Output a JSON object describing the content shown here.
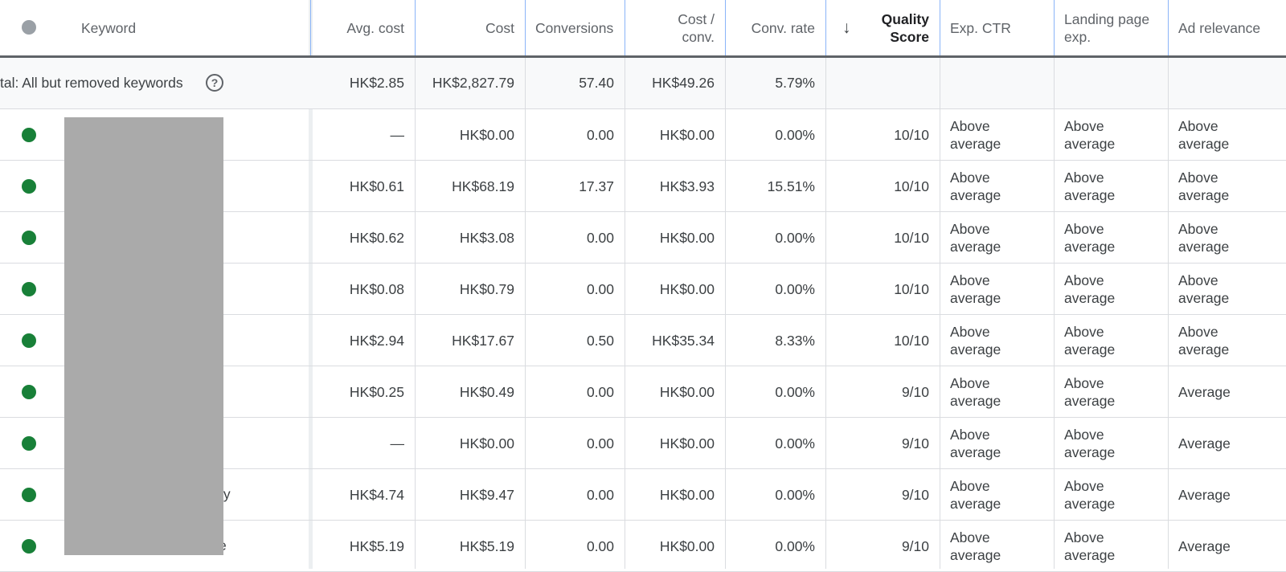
{
  "colors": {
    "status_enabled": "#188038",
    "status_header": "#9aa0a6",
    "header_border": "#8ab4f8",
    "total_row_bg": "#f8f9fa"
  },
  "header": {
    "keyword": "Keyword",
    "avg_cost": "Avg. cost",
    "cost": "Cost",
    "conversions": "Conversions",
    "cost_per_conv_1": "Cost /",
    "cost_per_conv_2": "conv.",
    "conv_rate": "Conv. rate",
    "sort_icon": "↓",
    "quality_score_1": "Quality",
    "quality_score_2": "Score",
    "exp_ctr": "Exp. CTR",
    "landing_page_1": "Landing page",
    "landing_page_2": "exp.",
    "ad_relevance": "Ad relevance"
  },
  "total": {
    "label": "tal: All but removed keywords",
    "help_icon": "?",
    "avg_cost": "HK$2.85",
    "cost": "HK$2,827.79",
    "conversions": "57.40",
    "cost_per_conv": "HK$49.26",
    "conv_rate": "5.79%"
  },
  "rows": [
    {
      "kw": "",
      "avg_cost": "—",
      "cost": "HK$0.00",
      "conversions": "0.00",
      "cost_per_conv": "HK$0.00",
      "conv_rate": "0.00%",
      "quality_score": "10/10",
      "exp_ctr": "Above average",
      "landing": "Above average",
      "relevance": "Above average"
    },
    {
      "kw": "",
      "avg_cost": "HK$0.61",
      "cost": "HK$68.19",
      "conversions": "17.37",
      "cost_per_conv": "HK$3.93",
      "conv_rate": "15.51%",
      "quality_score": "10/10",
      "exp_ctr": "Above average",
      "landing": "Above average",
      "relevance": "Above average"
    },
    {
      "kw": "",
      "avg_cost": "HK$0.62",
      "cost": "HK$3.08",
      "conversions": "0.00",
      "cost_per_conv": "HK$0.00",
      "conv_rate": "0.00%",
      "quality_score": "10/10",
      "exp_ctr": "Above average",
      "landing": "Above average",
      "relevance": "Above average"
    },
    {
      "kw": "",
      "avg_cost": "HK$0.08",
      "cost": "HK$0.79",
      "conversions": "0.00",
      "cost_per_conv": "HK$0.00",
      "conv_rate": "0.00%",
      "quality_score": "10/10",
      "exp_ctr": "Above average",
      "landing": "Above average",
      "relevance": "Above average"
    },
    {
      "kw": "",
      "avg_cost": "HK$2.94",
      "cost": "HK$17.67",
      "conversions": "0.50",
      "cost_per_conv": "HK$35.34",
      "conv_rate": "8.33%",
      "quality_score": "10/10",
      "exp_ctr": "Above average",
      "landing": "Above average",
      "relevance": "Above average"
    },
    {
      "kw": "",
      "avg_cost": "HK$0.25",
      "cost": "HK$0.49",
      "conversions": "0.00",
      "cost_per_conv": "HK$0.00",
      "conv_rate": "0.00%",
      "quality_score": "9/10",
      "exp_ctr": "Above average",
      "landing": "Above average",
      "relevance": "Average"
    },
    {
      "kw": "",
      "avg_cost": "—",
      "cost": "HK$0.00",
      "conversions": "0.00",
      "cost_per_conv": "HK$0.00",
      "conv_rate": "0.00%",
      "quality_score": "9/10",
      "exp_ctr": "Above average",
      "landing": "Above average",
      "relevance": "Average"
    },
    {
      "kw": "ry",
      "avg_cost": "HK$4.74",
      "cost": "HK$9.47",
      "conversions": "0.00",
      "cost_per_conv": "HK$0.00",
      "conv_rate": "0.00%",
      "quality_score": "9/10",
      "exp_ctr": "Above average",
      "landing": "Above average",
      "relevance": "Average"
    },
    {
      "kw": "e",
      "avg_cost": "HK$5.19",
      "cost": "HK$5.19",
      "conversions": "0.00",
      "cost_per_conv": "HK$0.00",
      "conv_rate": "0.00%",
      "quality_score": "9/10",
      "exp_ctr": "Above average",
      "landing": "Above average",
      "relevance": "Average"
    }
  ]
}
